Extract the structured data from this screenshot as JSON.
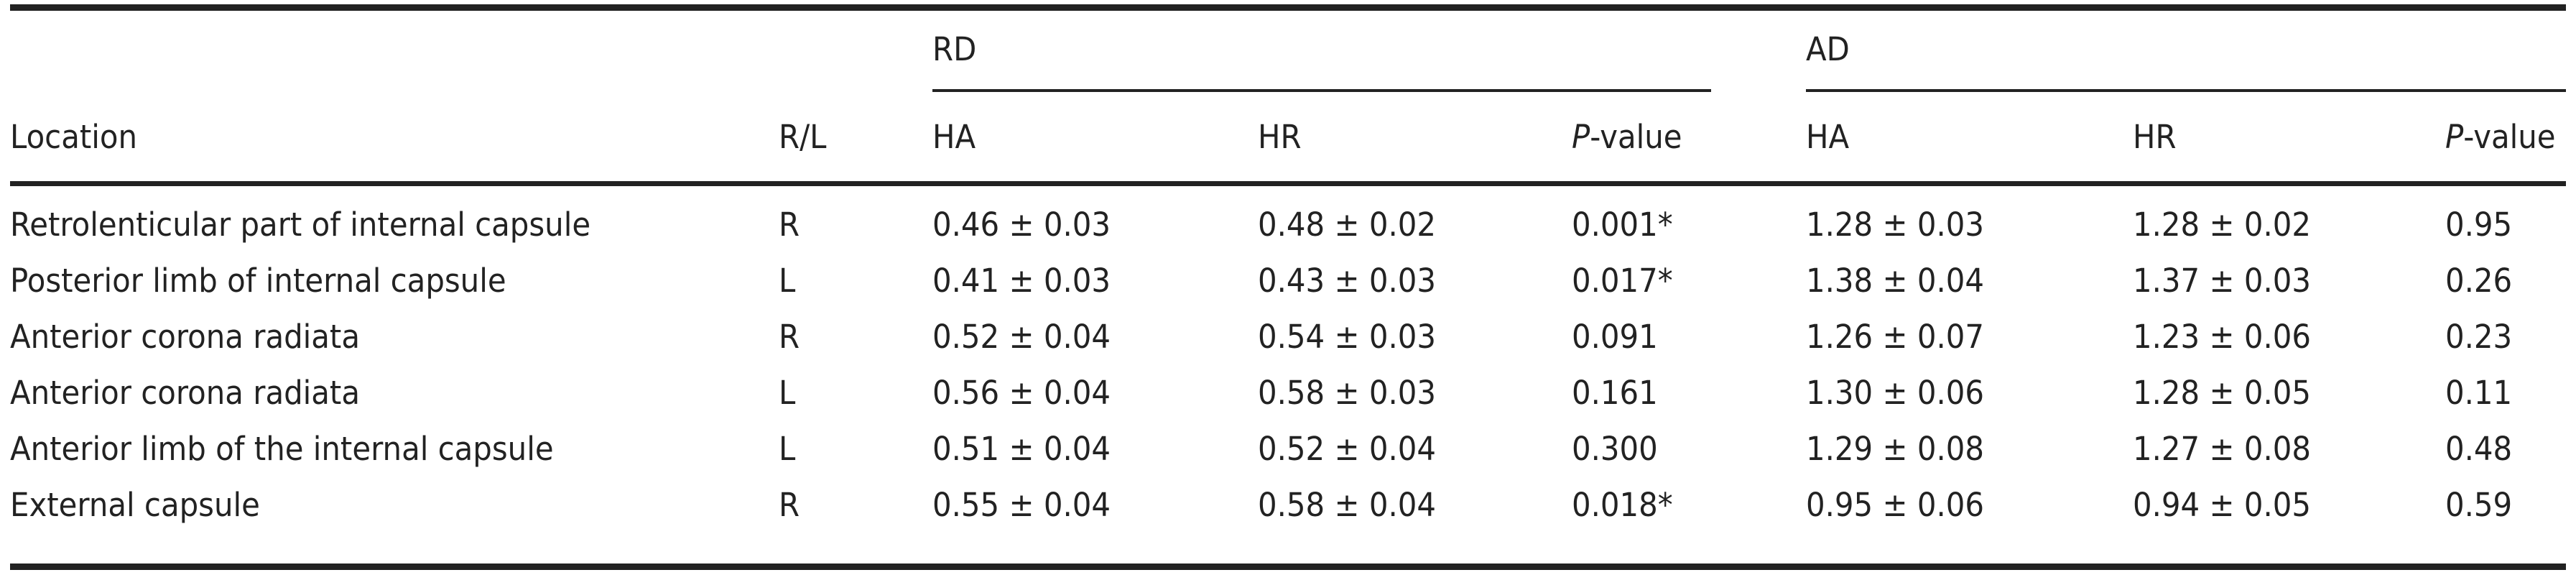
{
  "table": {
    "headers": {
      "location": "Location",
      "rl": "R/L",
      "group_rd": "RD",
      "group_ad": "AD",
      "ha": "HA",
      "hr": "HR",
      "p_italic": "P",
      "p_suffix": "-value"
    },
    "rows": [
      {
        "location": "Retrolenticular part of internal capsule",
        "rl": "R",
        "rd_ha": "0.46 ± 0.03",
        "rd_hr": "0.48 ± 0.02",
        "rd_p": "0.001*",
        "ad_ha": "1.28 ± 0.03",
        "ad_hr": "1.28 ± 0.02",
        "ad_p": "0.95"
      },
      {
        "location": "Posterior limb of internal capsule",
        "rl": "L",
        "rd_ha": "0.41 ± 0.03",
        "rd_hr": "0.43 ± 0.03",
        "rd_p": "0.017*",
        "ad_ha": "1.38 ± 0.04",
        "ad_hr": "1.37 ± 0.03",
        "ad_p": "0.26"
      },
      {
        "location": "Anterior corona radiata",
        "rl": "R",
        "rd_ha": "0.52 ± 0.04",
        "rd_hr": "0.54 ± 0.03",
        "rd_p": "0.091",
        "ad_ha": "1.26 ± 0.07",
        "ad_hr": "1.23 ± 0.06",
        "ad_p": "0.23"
      },
      {
        "location": "Anterior corona radiata",
        "rl": "L",
        "rd_ha": "0.56 ± 0.04",
        "rd_hr": "0.58 ± 0.03",
        "rd_p": "0.161",
        "ad_ha": "1.30 ± 0.06",
        "ad_hr": "1.28 ± 0.05",
        "ad_p": "0.11"
      },
      {
        "location": "Anterior limb of the internal capsule",
        "rl": "L",
        "rd_ha": "0.51 ± 0.04",
        "rd_hr": "0.52 ± 0.04",
        "rd_p": "0.300",
        "ad_ha": "1.29 ± 0.08",
        "ad_hr": "1.27 ± 0.08",
        "ad_p": "0.48"
      },
      {
        "location": "External capsule",
        "rl": "R",
        "rd_ha": "0.55 ± 0.04",
        "rd_hr": "0.58 ± 0.04",
        "rd_p": "0.018*",
        "ad_ha": "0.95 ± 0.06",
        "ad_hr": "0.94 ± 0.05",
        "ad_p": "0.59"
      }
    ]
  }
}
